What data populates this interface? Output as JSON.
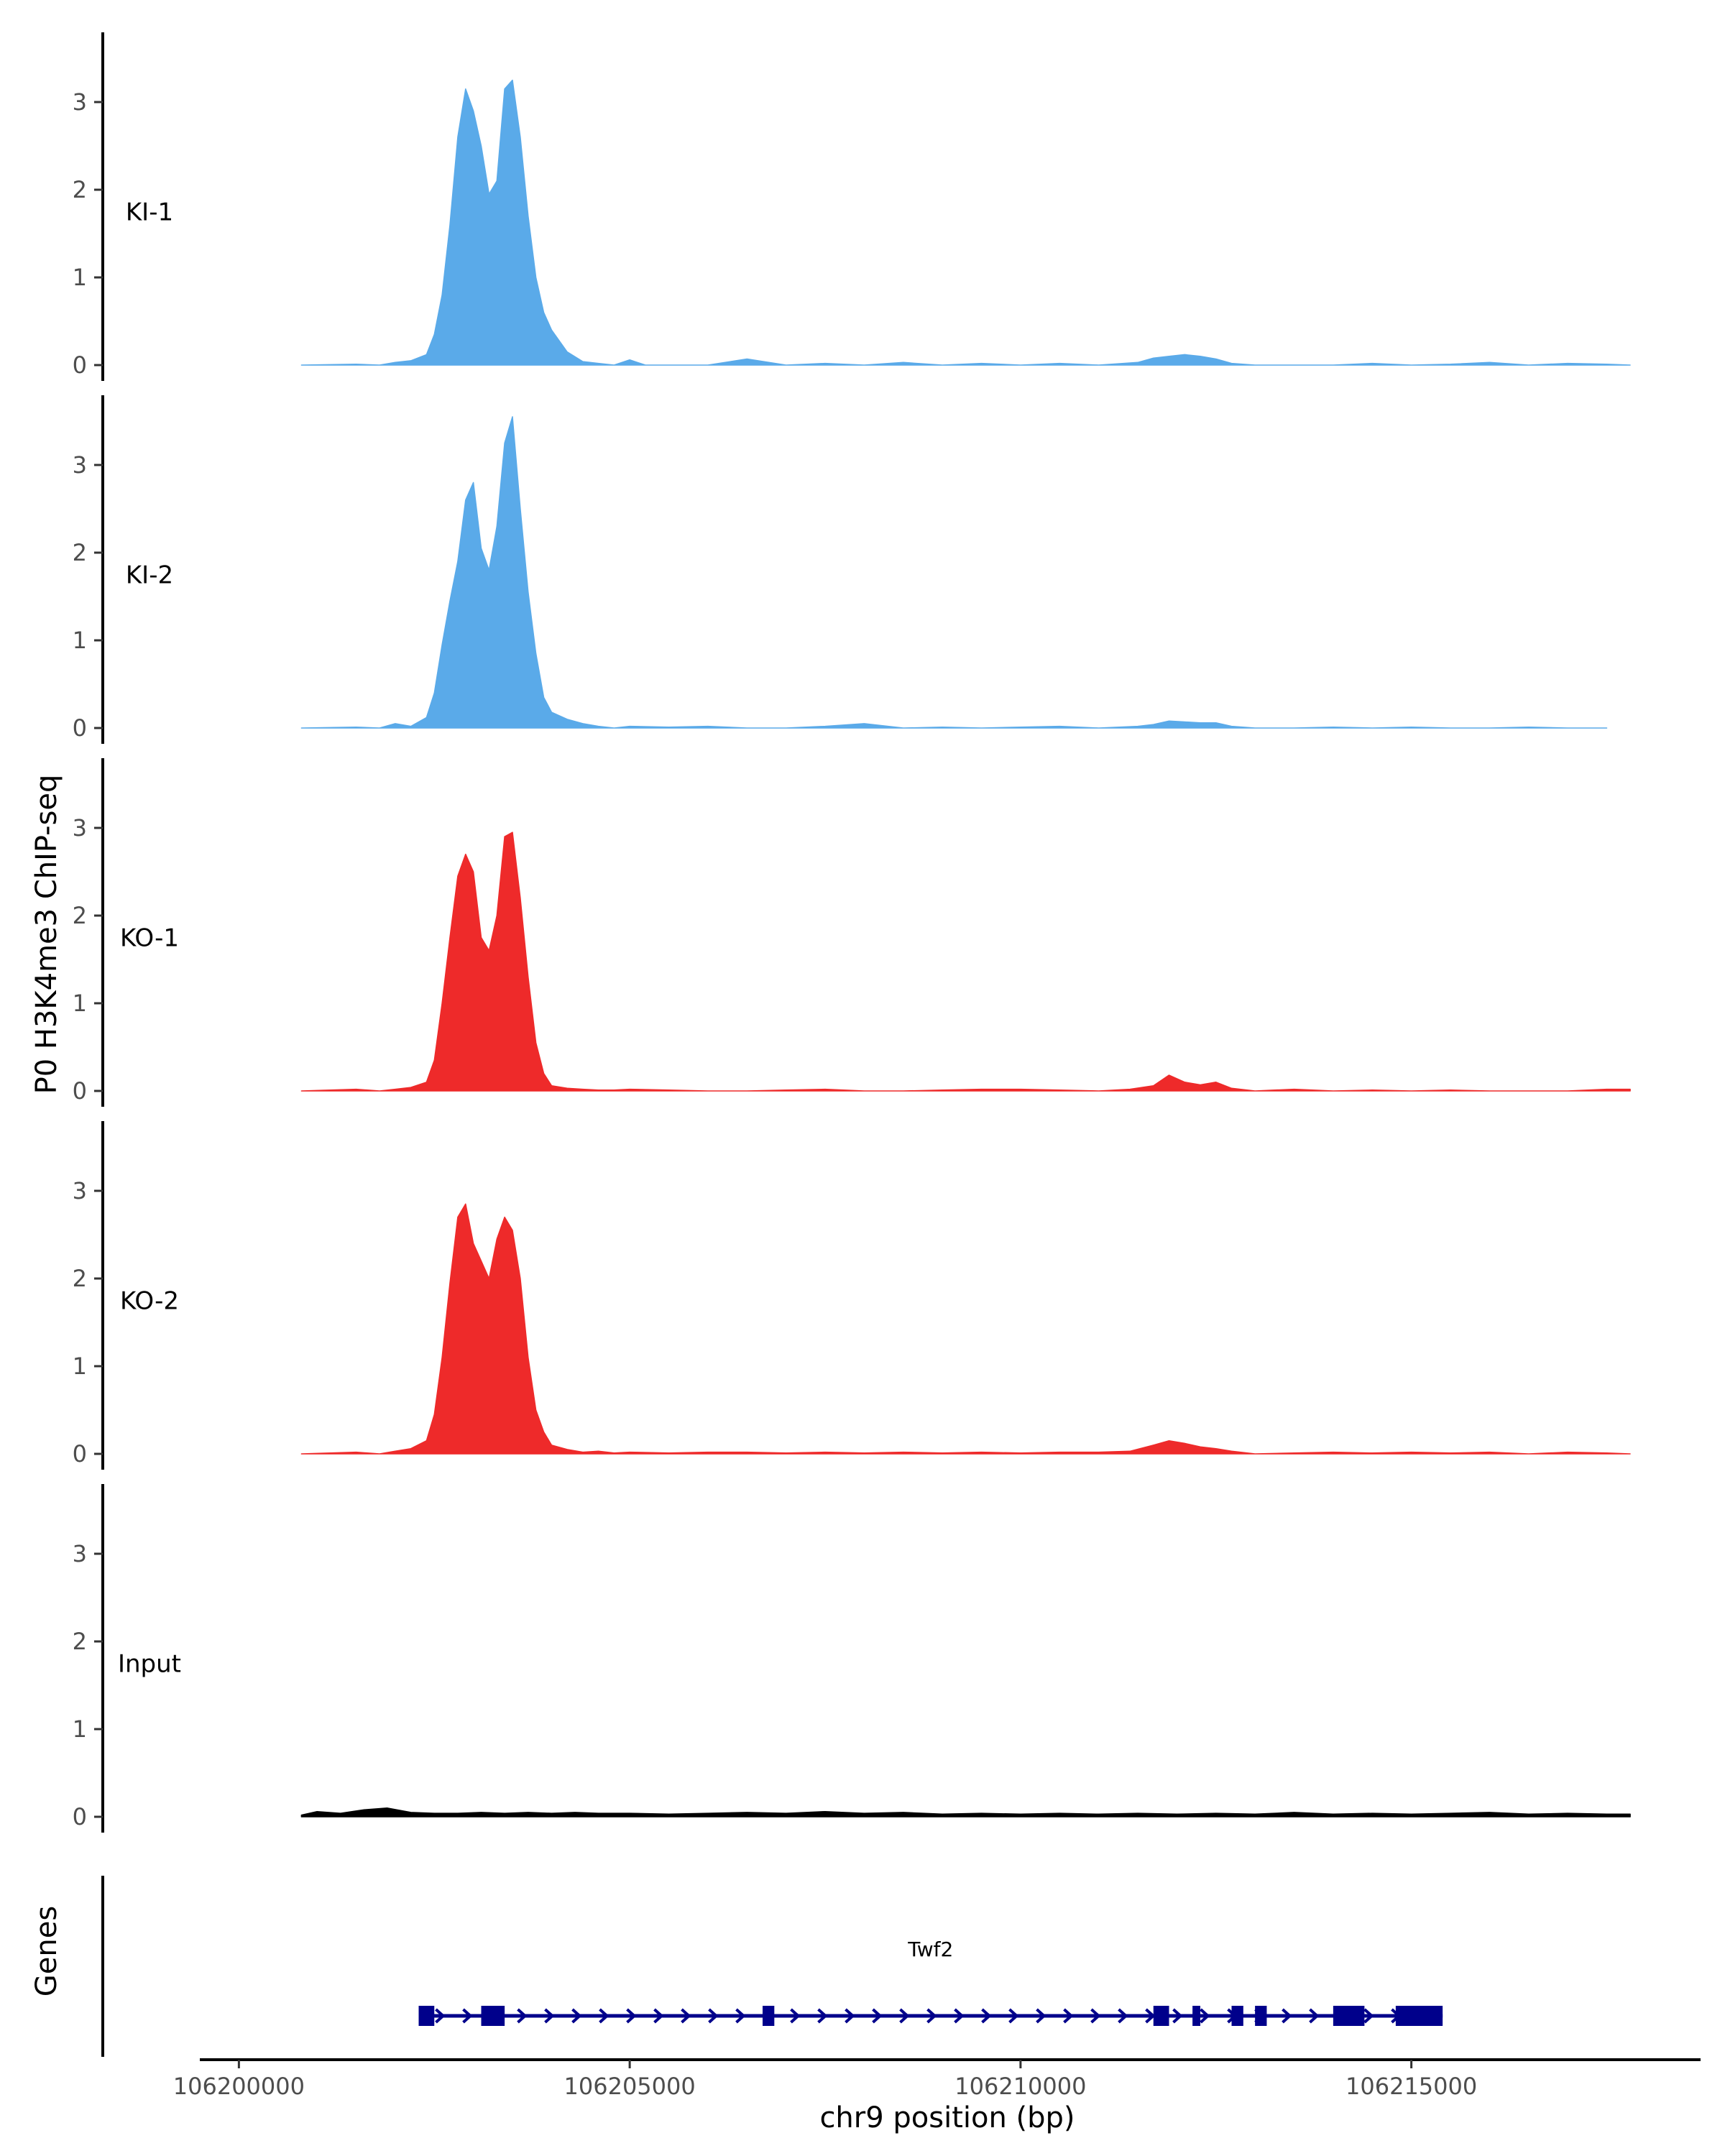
{
  "chart_data": {
    "type": "area",
    "title": "",
    "ylabel": "P0 H3K4me3 ChIP-seq",
    "xlabel": "chr9 position (bp)",
    "x_range": [
      106199500,
      106218700
    ],
    "ylim": [
      0,
      3.8
    ],
    "yticks": [
      0,
      1,
      2,
      3
    ],
    "yticks_labels": [
      "0",
      "1",
      "2",
      "3"
    ],
    "xticks": [
      106200000,
      106205000,
      106210000,
      106215000
    ],
    "xticks_labels": [
      "106200000",
      "106205000",
      "106210000",
      "106215000"
    ],
    "colors": {
      "KI": "#5aaae9",
      "KO": "#ee2a2a",
      "Input": "#000000",
      "gene": "#00008b",
      "axis": "#000000"
    },
    "series": [
      {
        "name": "KI-1",
        "color": "#5aaae9",
        "x": [
          106200800,
          106201500,
          106201800,
          106202000,
          106202200,
          106202400,
          106202500,
          106202600,
          106202700,
          106202800,
          106202900,
          106203000,
          106203100,
          106203200,
          106203300,
          106203400,
          106203500,
          106203600,
          106203700,
          106203800,
          106203900,
          106204000,
          106204200,
          106204400,
          106204600,
          106204800,
          106205000,
          106205200,
          106205400,
          106205700,
          106206000,
          106206500,
          106207000,
          106207500,
          106208000,
          106208500,
          106209000,
          106209500,
          106210000,
          106210500,
          106211000,
          106211500,
          106211700,
          106211900,
          106212100,
          106212300,
          106212500,
          106212700,
          106213000,
          106213500,
          106214000,
          106214500,
          106215000,
          106215500,
          106216000,
          106216500,
          106217000,
          106217500,
          106217800
        ],
        "y": [
          0.0,
          0.01,
          0.0,
          0.03,
          0.05,
          0.12,
          0.35,
          0.8,
          1.6,
          2.6,
          3.15,
          2.9,
          2.5,
          1.95,
          2.1,
          3.15,
          3.25,
          2.6,
          1.7,
          1.0,
          0.6,
          0.4,
          0.15,
          0.04,
          0.02,
          0.0,
          0.06,
          0.0,
          0.0,
          0.0,
          0.0,
          0.07,
          0.0,
          0.02,
          0.0,
          0.03,
          0.0,
          0.02,
          0.0,
          0.02,
          0.0,
          0.03,
          0.08,
          0.1,
          0.12,
          0.1,
          0.07,
          0.02,
          0.0,
          0.0,
          0.0,
          0.02,
          0.0,
          0.01,
          0.03,
          0.0,
          0.02,
          0.01,
          0.0
        ]
      },
      {
        "name": "KI-2",
        "color": "#5aaae9",
        "x": [
          106200800,
          106201500,
          106201800,
          106202000,
          106202200,
          106202400,
          106202500,
          106202600,
          106202700,
          106202800,
          106202900,
          106203000,
          106203100,
          106203200,
          106203300,
          106203400,
          106203500,
          106203600,
          106203700,
          106203800,
          106203900,
          106204000,
          106204200,
          106204400,
          106204600,
          106204800,
          106205000,
          106205500,
          106206000,
          106206500,
          106207000,
          106207500,
          106208000,
          106208500,
          106209000,
          106209500,
          106210000,
          106210500,
          106211000,
          106211500,
          106211700,
          106211900,
          106212100,
          106212300,
          106212500,
          106212700,
          106213000,
          106213500,
          106214000,
          106214500,
          106215000,
          106215500,
          106216000,
          106216500,
          106217000,
          106217500
        ],
        "y": [
          0.0,
          0.01,
          0.0,
          0.05,
          0.02,
          0.12,
          0.4,
          0.95,
          1.45,
          1.9,
          2.6,
          2.8,
          2.05,
          1.8,
          2.3,
          3.25,
          3.55,
          2.5,
          1.55,
          0.85,
          0.35,
          0.18,
          0.1,
          0.05,
          0.02,
          0.0,
          0.02,
          0.01,
          0.02,
          0.0,
          0.0,
          0.02,
          0.05,
          0.0,
          0.01,
          0.0,
          0.01,
          0.02,
          0.0,
          0.02,
          0.04,
          0.08,
          0.07,
          0.06,
          0.06,
          0.02,
          0.0,
          0.0,
          0.01,
          0.0,
          0.01,
          0.0,
          0.0,
          0.01,
          0.0,
          0.0
        ]
      },
      {
        "name": "KO-1",
        "color": "#ee2a2a",
        "x": [
          106200800,
          106201500,
          106201800,
          106202000,
          106202200,
          106202400,
          106202500,
          106202600,
          106202700,
          106202800,
          106202900,
          106203000,
          106203100,
          106203200,
          106203300,
          106203400,
          106203500,
          106203600,
          106203700,
          106203800,
          106203900,
          106204000,
          106204200,
          106204400,
          106204600,
          106204800,
          106205000,
          106205500,
          106206000,
          106206500,
          106207000,
          106207500,
          106208000,
          106208500,
          106209000,
          106209500,
          106210000,
          106210500,
          106211000,
          106211400,
          106211700,
          106211900,
          106212100,
          106212300,
          106212500,
          106212700,
          106213000,
          106213500,
          106214000,
          106214500,
          106215000,
          106215500,
          106216000,
          106216500,
          106217000,
          106217500,
          106217800
        ],
        "y": [
          0.0,
          0.02,
          0.0,
          0.02,
          0.04,
          0.1,
          0.35,
          1.0,
          1.75,
          2.45,
          2.7,
          2.5,
          1.75,
          1.6,
          2.0,
          2.9,
          2.95,
          2.2,
          1.3,
          0.55,
          0.2,
          0.06,
          0.03,
          0.02,
          0.01,
          0.01,
          0.02,
          0.01,
          0.0,
          0.0,
          0.01,
          0.02,
          0.0,
          0.0,
          0.01,
          0.02,
          0.02,
          0.01,
          0.0,
          0.02,
          0.06,
          0.18,
          0.1,
          0.07,
          0.1,
          0.03,
          0.0,
          0.02,
          0.0,
          0.01,
          0.0,
          0.01,
          0.0,
          0.0,
          0.0,
          0.02,
          0.02
        ]
      },
      {
        "name": "KO-2",
        "color": "#ee2a2a",
        "x": [
          106200800,
          106201500,
          106201800,
          106202000,
          106202200,
          106202400,
          106202500,
          106202600,
          106202700,
          106202800,
          106202900,
          106203000,
          106203100,
          106203200,
          106203300,
          106203400,
          106203500,
          106203600,
          106203700,
          106203800,
          106203900,
          106204000,
          106204200,
          106204400,
          106204600,
          106204800,
          106205000,
          106205500,
          106206000,
          106206500,
          106207000,
          106207500,
          106208000,
          106208500,
          106209000,
          106209500,
          106210000,
          106210500,
          106211000,
          106211400,
          106211700,
          106211900,
          106212100,
          106212300,
          106212500,
          106212700,
          106213000,
          106213500,
          106214000,
          106214500,
          106215000,
          106215500,
          106216000,
          106216500,
          106217000,
          106217500,
          106217800
        ],
        "y": [
          0.0,
          0.02,
          0.0,
          0.03,
          0.06,
          0.15,
          0.45,
          1.1,
          1.95,
          2.7,
          2.85,
          2.4,
          2.2,
          2.0,
          2.45,
          2.7,
          2.55,
          2.0,
          1.1,
          0.5,
          0.25,
          0.1,
          0.05,
          0.02,
          0.03,
          0.01,
          0.02,
          0.01,
          0.02,
          0.02,
          0.01,
          0.02,
          0.01,
          0.02,
          0.01,
          0.02,
          0.01,
          0.02,
          0.02,
          0.03,
          0.1,
          0.15,
          0.12,
          0.08,
          0.06,
          0.03,
          0.0,
          0.01,
          0.02,
          0.01,
          0.02,
          0.01,
          0.02,
          0.0,
          0.02,
          0.01,
          0.0
        ]
      },
      {
        "name": "Input",
        "color": "#000000",
        "x": [
          106200800,
          106201000,
          106201300,
          106201600,
          106201900,
          106202200,
          106202500,
          106202800,
          106203100,
          106203400,
          106203700,
          106204000,
          106204300,
          106204600,
          106205000,
          106205500,
          106206000,
          106206500,
          106207000,
          106207500,
          106208000,
          106208500,
          106209000,
          106209500,
          106210000,
          106210500,
          106211000,
          106211500,
          106212000,
          106212500,
          106213000,
          106213500,
          106214000,
          106214500,
          106215000,
          106215500,
          106216000,
          106216500,
          106217000,
          106217500,
          106217800
        ],
        "y": [
          0.02,
          0.06,
          0.04,
          0.08,
          0.1,
          0.05,
          0.04,
          0.04,
          0.05,
          0.04,
          0.05,
          0.04,
          0.05,
          0.04,
          0.04,
          0.03,
          0.04,
          0.05,
          0.04,
          0.06,
          0.04,
          0.05,
          0.03,
          0.04,
          0.03,
          0.04,
          0.03,
          0.04,
          0.03,
          0.04,
          0.03,
          0.05,
          0.03,
          0.04,
          0.03,
          0.04,
          0.05,
          0.03,
          0.04,
          0.03,
          0.03
        ]
      }
    ],
    "genes": [
      {
        "name": "Twf2",
        "start": 106202300,
        "end": 106215400,
        "strand": "+",
        "exons": [
          [
            106202300,
            106202500
          ],
          [
            106203100,
            106203400
          ],
          [
            106206700,
            106206850
          ],
          [
            106211700,
            106211900
          ],
          [
            106212200,
            106212300
          ],
          [
            106212700,
            106212850
          ],
          [
            106213000,
            106213150
          ],
          [
            106214000,
            106214400
          ],
          [
            106214800,
            106215400
          ]
        ]
      }
    ],
    "gene_track_label": "Genes"
  }
}
